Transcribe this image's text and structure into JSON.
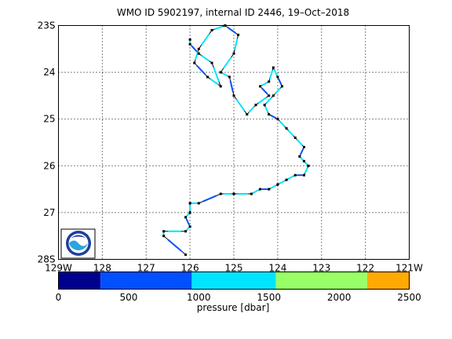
{
  "title": "WMO ID 5902197, internal ID 2446, 19–Oct–2018",
  "map": {
    "lat_labels": [
      "23S",
      "24",
      "25",
      "26",
      "27",
      "28S"
    ],
    "lat_values": [
      -23,
      -24,
      -25,
      -26,
      -27,
      -28
    ],
    "lon_labels": [
      "129W",
      "128",
      "127",
      "126",
      "125",
      "124",
      "123",
      "122",
      "121W"
    ],
    "lon_values": [
      -129,
      -128,
      -127,
      -126,
      -125,
      -124,
      -123,
      -122,
      -121
    ],
    "lon_range": [
      -129,
      -121
    ],
    "lat_range": [
      -28,
      -23
    ],
    "grid": true,
    "logo": "noaa-logo"
  },
  "colorbar": {
    "label": "pressure [dbar]",
    "tick_labels": [
      "0",
      "500",
      "1000",
      "1500",
      "2000",
      "2500"
    ],
    "tick_values": [
      0,
      500,
      1000,
      1500,
      2000,
      2500
    ],
    "bands": [
      {
        "from": 0,
        "to": 300,
        "color": "#00008f"
      },
      {
        "from": 300,
        "to": 950,
        "color": "#0050ff"
      },
      {
        "from": 950,
        "to": 1550,
        "color": "#00e5ff"
      },
      {
        "from": 1550,
        "to": 2200,
        "color": "#99ff66"
      },
      {
        "from": 2200,
        "to": 2500,
        "color": "#ffaa00"
      }
    ]
  },
  "chart_data": {
    "type": "scatter",
    "xlabel": "",
    "ylabel": "",
    "xlim": [
      -129,
      -121
    ],
    "ylim": [
      -28,
      -23
    ],
    "series": [
      {
        "points": [
          [
            -126.1,
            -27.9
          ],
          [
            -126.6,
            -27.5
          ],
          [
            -126.6,
            -27.4
          ],
          [
            -126.1,
            -27.4
          ],
          [
            -126.0,
            -27.3
          ],
          [
            -126.1,
            -27.1
          ],
          [
            -126.0,
            -27.0
          ],
          [
            -126.0,
            -26.8
          ],
          [
            -125.8,
            -26.8
          ],
          [
            -125.3,
            -26.6
          ],
          [
            -125.0,
            -26.6
          ],
          [
            -124.6,
            -26.6
          ],
          [
            -124.4,
            -26.5
          ],
          [
            -124.2,
            -26.5
          ],
          [
            -124.0,
            -26.4
          ],
          [
            -123.8,
            -26.3
          ],
          [
            -123.6,
            -26.2
          ],
          [
            -123.4,
            -26.2
          ],
          [
            -123.3,
            -26.0
          ],
          [
            -123.4,
            -25.9
          ],
          [
            -123.5,
            -25.8
          ],
          [
            -123.4,
            -25.6
          ],
          [
            -123.6,
            -25.4
          ],
          [
            -123.8,
            -25.2
          ],
          [
            -124.0,
            -25.0
          ],
          [
            -124.2,
            -24.9
          ],
          [
            -124.3,
            -24.7
          ],
          [
            -124.1,
            -24.5
          ],
          [
            -123.9,
            -24.3
          ],
          [
            -124.0,
            -24.1
          ],
          [
            -124.1,
            -23.9
          ],
          [
            -124.2,
            -24.2
          ],
          [
            -124.4,
            -24.3
          ],
          [
            -124.2,
            -24.5
          ],
          [
            -124.5,
            -24.7
          ],
          [
            -124.7,
            -24.9
          ],
          [
            -125.0,
            -24.5
          ],
          [
            -125.1,
            -24.1
          ],
          [
            -125.3,
            -24.0
          ],
          [
            -125.0,
            -23.6
          ],
          [
            -124.9,
            -23.2
          ],
          [
            -125.2,
            -23.0
          ],
          [
            -125.5,
            -23.1
          ],
          [
            -125.8,
            -23.5
          ],
          [
            -125.9,
            -23.8
          ],
          [
            -125.6,
            -24.1
          ],
          [
            -125.3,
            -24.3
          ],
          [
            -125.5,
            -23.8
          ],
          [
            -125.8,
            -23.6
          ],
          [
            -126.0,
            -23.4
          ],
          [
            -126.0,
            -23.3
          ]
        ]
      }
    ]
  }
}
